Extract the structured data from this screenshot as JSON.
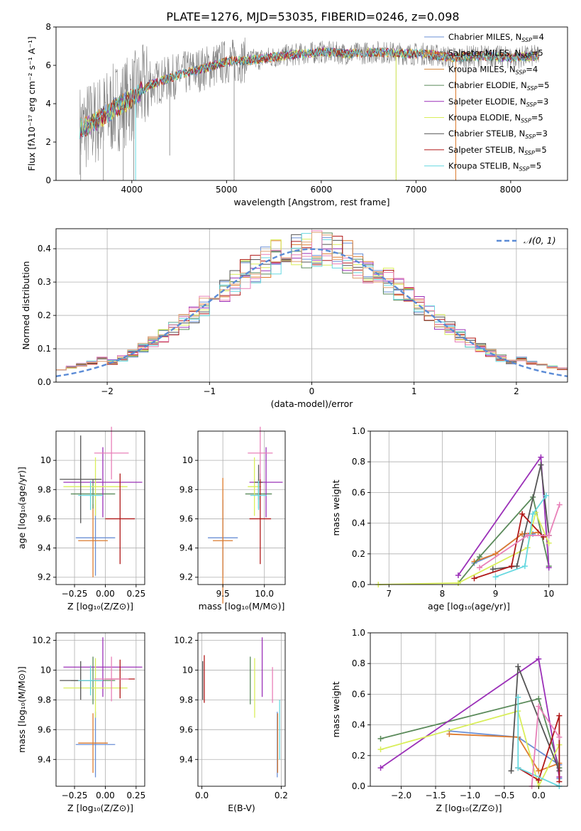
{
  "figure_title": "PLATE=1276, MJD=53035, FIBERID=0246, z=0.098",
  "model_colors": {
    "Chabrier MILES": "#6a8fd6",
    "Salpeter MILES": "#de7b2e",
    "Kroupa MILES": "#d98a3a",
    "Chabrier ELODIE": "#5a8a5a",
    "Salpeter ELODIE": "#9b30b8",
    "Kroupa ELODIE": "#d9ee5a",
    "Chabrier STELIB": "#555555",
    "Salpeter STELIB": "#b01818",
    "Kroupa STELIB": "#66d8e0",
    "pink": "#e880b8",
    "gray": "#888888"
  },
  "chart_data": [
    {
      "id": "spectrum",
      "type": "line",
      "xlabel": "wavelength [Angstrom, rest frame]",
      "ylabel": "Flux [fλ10⁻¹⁷ erg cm⁻² s⁻¹ A⁻¹]",
      "xlim": [
        3200,
        8600
      ],
      "ylim": [
        0,
        8
      ],
      "xticks": [
        4000,
        5000,
        6000,
        7000,
        8000
      ],
      "yticks": [
        0,
        2,
        4,
        6,
        8
      ],
      "legend_position": "upper-right",
      "legend": [
        {
          "label": "Chabrier MILES, N",
          "sub": "SSP",
          "suffix": "=4",
          "color": "#6a8fd6"
        },
        {
          "label": "Salpeter MILES, N",
          "sub": "SSP",
          "suffix": "=5",
          "color": "#de7b2e"
        },
        {
          "label": "Kroupa MILES, N",
          "sub": "SSP",
          "suffix": "=4",
          "color": "#d98a3a"
        },
        {
          "label": "Chabrier ELODIE, N",
          "sub": "SSP",
          "suffix": "=5",
          "color": "#5a8a5a"
        },
        {
          "label": "Salpeter ELODIE, N",
          "sub": "SSP",
          "suffix": "=3",
          "color": "#9b30b8"
        },
        {
          "label": "Kroupa ELODIE, N",
          "sub": "SSP",
          "suffix": "=5",
          "color": "#d9ee5a"
        },
        {
          "label": "Chabrier STELIB, N",
          "sub": "SSP",
          "suffix": "=3",
          "color": "#555555"
        },
        {
          "label": "Salpeter STELIB, N",
          "sub": "SSP",
          "suffix": "=5",
          "color": "#b01818"
        },
        {
          "label": "Kroupa STELIB, N",
          "sub": "SSP",
          "suffix": "=5",
          "color": "#66d8e0"
        }
      ],
      "continuum": [
        [
          3450,
          2.7
        ],
        [
          3600,
          3.0
        ],
        [
          3800,
          3.7
        ],
        [
          4000,
          4.3
        ],
        [
          4200,
          5.0
        ],
        [
          4500,
          5.5
        ],
        [
          4800,
          5.9
        ],
        [
          5000,
          6.2
        ],
        [
          5300,
          6.3
        ],
        [
          5600,
          6.5
        ],
        [
          6000,
          6.7
        ],
        [
          6300,
          6.6
        ],
        [
          6600,
          6.7
        ],
        [
          6900,
          6.6
        ],
        [
          7100,
          6.6
        ],
        [
          7400,
          6.4
        ],
        [
          7700,
          6.5
        ],
        [
          8000,
          6.4
        ],
        [
          8300,
          6.5
        ]
      ],
      "dropouts": [
        [
          3460,
          0
        ],
        [
          3700,
          0
        ],
        [
          3910,
          0
        ],
        [
          4020,
          0
        ],
        [
          4400,
          1.3
        ],
        [
          5080,
          0
        ],
        [
          6790,
          0
        ],
        [
          7420,
          0
        ]
      ]
    },
    {
      "id": "residuals",
      "type": "histogram",
      "xlabel": "(data-model)/error",
      "ylabel": "Normed distribution",
      "xlim": [
        -2.5,
        2.5
      ],
      "ylim": [
        0,
        0.46
      ],
      "xticks": [
        -2,
        -1,
        0,
        1,
        2
      ],
      "xtick_labels": [
        "−2",
        "−1",
        "0",
        "1",
        "2"
      ],
      "yticks": [
        0,
        0.1,
        0.2,
        0.3,
        0.4
      ],
      "ytick_labels": [
        "0.0",
        "0.1",
        "0.2",
        "0.3",
        "0.4"
      ],
      "bin_width": 0.1,
      "legend_label": "𝒩(0, 1)",
      "legend_position": "upper-right",
      "normal_curve_color": "#5b8bd6"
    },
    {
      "id": "age_vs_Z",
      "type": "errorbar",
      "xlabel": "Z [log₁₀(Z/Z⊙)]",
      "ylabel": "age  [log₁₀(age/yr)]",
      "xlim": [
        -0.4,
        0.32
      ],
      "ylim": [
        9.15,
        10.2
      ],
      "xticks": [
        -0.25,
        0,
        0.25
      ],
      "xtick_labels": [
        "−0.25",
        "0.00",
        "0.25"
      ],
      "yticks": [
        9.2,
        9.4,
        9.6,
        9.8,
        10.0
      ],
      "points": [
        {
          "x": -0.08,
          "xerr": 0.16,
          "y": 9.47,
          "yerr": 0.26,
          "color": "#6a8fd6"
        },
        {
          "x": -0.1,
          "xerr": 0.12,
          "y": 9.45,
          "yerr": 0.25,
          "color": "#de7b2e"
        },
        {
          "x": -0.1,
          "xerr": 0.18,
          "y": 9.77,
          "yerr": 0.1,
          "color": "#5a8a5a"
        },
        {
          "x": -0.02,
          "xerr": 0.32,
          "y": 9.85,
          "yerr": 0.24,
          "color": "#9b30b8"
        },
        {
          "x": -0.08,
          "xerr": 0.26,
          "y": 9.82,
          "yerr": 0.2,
          "color": "#d9ee5a"
        },
        {
          "x": -0.2,
          "xerr": 0.17,
          "y": 9.87,
          "yerr": 0.3,
          "color": "#555555"
        },
        {
          "x": 0.12,
          "xerr": 0.12,
          "y": 9.6,
          "yerr": 0.31,
          "color": "#b01818"
        },
        {
          "x": -0.12,
          "xerr": 0.1,
          "y": 9.76,
          "yerr": 0.1,
          "color": "#66d8e0"
        },
        {
          "x": 0.05,
          "xerr": 0.14,
          "y": 10.05,
          "yerr": 0.18,
          "color": "#e880b8"
        }
      ]
    },
    {
      "id": "age_vs_mass",
      "type": "errorbar",
      "xlabel": "mass [log₁₀(M/M⊙)]",
      "ylabel": "",
      "xlim": [
        9.2,
        10.25
      ],
      "ylim": [
        9.15,
        10.2
      ],
      "xticks": [
        9.5,
        10.0
      ],
      "xtick_labels": [
        "9.5",
        "10.0"
      ],
      "yticks": [
        9.2,
        9.4,
        9.6,
        9.8,
        10.0
      ],
      "points": [
        {
          "x": 9.5,
          "xerr": 0.18,
          "y": 9.47,
          "yerr": 0.26,
          "color": "#6a8fd6"
        },
        {
          "x": 9.5,
          "xerr": 0.12,
          "y": 9.45,
          "yerr": 0.43,
          "color": "#de7b2e"
        },
        {
          "x": 9.93,
          "xerr": 0.16,
          "y": 9.77,
          "yerr": 0.1,
          "color": "#5a8a5a"
        },
        {
          "x": 10.02,
          "xerr": 0.2,
          "y": 9.85,
          "yerr": 0.24,
          "color": "#9b30b8"
        },
        {
          "x": 9.88,
          "xerr": 0.08,
          "y": 9.82,
          "yerr": 0.2,
          "color": "#d9ee5a"
        },
        {
          "x": 9.93,
          "xerr": 0.05,
          "y": 9.85,
          "yerr": 0.12,
          "color": "#555555"
        },
        {
          "x": 9.95,
          "xerr": 0.13,
          "y": 9.6,
          "yerr": 0.31,
          "color": "#b01818"
        },
        {
          "x": 9.93,
          "xerr": 0.1,
          "y": 9.76,
          "yerr": 0.1,
          "color": "#66d8e0"
        },
        {
          "x": 9.95,
          "xerr": 0.15,
          "y": 10.05,
          "yerr": 0.18,
          "color": "#e880b8"
        }
      ]
    },
    {
      "id": "weight_vs_age",
      "type": "line",
      "xlabel": "age  [log₁₀(age/yr)]",
      "ylabel": "mass weight",
      "xlim": [
        6.65,
        10.35
      ],
      "ylim": [
        0,
        1
      ],
      "xticks": [
        7,
        8,
        9,
        10
      ],
      "xtick_labels": [
        "7",
        "8",
        "9",
        "10"
      ],
      "yticks": [
        0,
        0.2,
        0.4,
        0.6,
        0.8,
        1.0
      ],
      "ytick_labels": [
        "0.0",
        "0.2",
        "0.4",
        "0.6",
        "0.8",
        "1.0"
      ],
      "series": [
        {
          "color": "#6a8fd6",
          "points": [
            [
              8.6,
              0.14
            ],
            [
              9.0,
              0.2
            ],
            [
              9.5,
              0.33
            ],
            [
              9.7,
              0.33
            ]
          ]
        },
        {
          "color": "#de7b2e",
          "points": [
            [
              8.6,
              0.15
            ],
            [
              9.0,
              0.2
            ],
            [
              9.5,
              0.33
            ],
            [
              9.8,
              0.34
            ]
          ]
        },
        {
          "color": "#5a8a5a",
          "points": [
            [
              8.3,
              0.01
            ],
            [
              8.7,
              0.18
            ],
            [
              9.7,
              0.57
            ],
            [
              10.0,
              0.12
            ]
          ]
        },
        {
          "color": "#9b30b8",
          "points": [
            [
              8.3,
              0.06
            ],
            [
              9.85,
              0.83
            ],
            [
              10.0,
              0.11
            ]
          ]
        },
        {
          "color": "#d9ee5a",
          "points": [
            [
              6.8,
              0.0
            ],
            [
              8.3,
              0.01
            ],
            [
              9.6,
              0.24
            ],
            [
              9.75,
              0.47
            ],
            [
              10.0,
              0.27
            ]
          ]
        },
        {
          "color": "#555555",
          "points": [
            [
              8.95,
              0.1
            ],
            [
              9.4,
              0.12
            ],
            [
              9.85,
              0.78
            ],
            [
              10.0,
              0.32
            ]
          ]
        },
        {
          "color": "#b01818",
          "points": [
            [
              8.6,
              0.04
            ],
            [
              9.3,
              0.12
            ],
            [
              9.5,
              0.46
            ],
            [
              9.9,
              0.31
            ]
          ]
        },
        {
          "color": "#66d8e0",
          "points": [
            [
              9.0,
              0.05
            ],
            [
              9.55,
              0.12
            ],
            [
              9.7,
              0.46
            ],
            [
              9.95,
              0.58
            ]
          ]
        },
        {
          "color": "#e880b8",
          "points": [
            [
              8.7,
              0.11
            ],
            [
              9.6,
              0.32
            ],
            [
              10.0,
              0.32
            ],
            [
              10.2,
              0.52
            ]
          ]
        }
      ]
    },
    {
      "id": "mass_vs_Z",
      "type": "errorbar",
      "xlabel": "Z [log₁₀(Z/Z⊙)]",
      "ylabel": "mass [log₁₀(M/M⊙)]",
      "xlim": [
        -0.4,
        0.32
      ],
      "ylim": [
        9.22,
        10.25
      ],
      "xticks": [
        -0.25,
        0,
        0.25
      ],
      "xtick_labels": [
        "−0.25",
        "0.00",
        "0.25"
      ],
      "yticks": [
        9.4,
        9.6,
        9.8,
        10.0,
        10.2
      ],
      "points": [
        {
          "x": -0.08,
          "xerr": 0.16,
          "y": 9.5,
          "yerr": 0.22,
          "color": "#6a8fd6"
        },
        {
          "x": -0.1,
          "xerr": 0.12,
          "y": 9.51,
          "yerr": 0.2,
          "color": "#de7b2e"
        },
        {
          "x": -0.1,
          "xerr": 0.18,
          "y": 9.93,
          "yerr": 0.16,
          "color": "#5a8a5a"
        },
        {
          "x": -0.02,
          "xerr": 0.32,
          "y": 10.02,
          "yerr": 0.2,
          "color": "#9b30b8"
        },
        {
          "x": -0.08,
          "xerr": 0.26,
          "y": 9.88,
          "yerr": 0.2,
          "color": "#d9ee5a"
        },
        {
          "x": -0.2,
          "xerr": 0.17,
          "y": 9.93,
          "yerr": 0.13,
          "color": "#555555"
        },
        {
          "x": 0.12,
          "xerr": 0.12,
          "y": 9.94,
          "yerr": 0.13,
          "color": "#b01818"
        },
        {
          "x": -0.12,
          "xerr": 0.1,
          "y": 9.93,
          "yerr": 0.1,
          "color": "#66d8e0"
        },
        {
          "x": 0.05,
          "xerr": 0.14,
          "y": 9.94,
          "yerr": 0.15,
          "color": "#e880b8"
        }
      ]
    },
    {
      "id": "mass_vs_ebv",
      "type": "errorbar",
      "xlabel": "E(B-V)",
      "ylabel": "",
      "xlim": [
        -0.01,
        0.21
      ],
      "ylim": [
        9.22,
        10.25
      ],
      "xticks": [
        0.0,
        0.2
      ],
      "xtick_labels": [
        "0.0",
        "0.2"
      ],
      "yticks": [
        9.4,
        9.6,
        9.8,
        10.0,
        10.2
      ],
      "points": [
        {
          "x": 0.19,
          "y": 9.5,
          "yerr": 0.22,
          "color": "#6a8fd6"
        },
        {
          "x": 0.191,
          "y": 9.51,
          "yerr": 0.2,
          "color": "#de7b2e"
        },
        {
          "x": 0.122,
          "y": 9.93,
          "yerr": 0.16,
          "color": "#5a8a5a"
        },
        {
          "x": 0.152,
          "y": 10.02,
          "yerr": 0.2,
          "color": "#9b30b8"
        },
        {
          "x": 0.133,
          "y": 9.88,
          "yerr": 0.2,
          "color": "#d9ee5a"
        },
        {
          "x": 0.002,
          "y": 9.93,
          "yerr": 0.13,
          "color": "#555555"
        },
        {
          "x": 0.006,
          "y": 9.94,
          "yerr": 0.16,
          "color": "#b01818"
        },
        {
          "x": 0.196,
          "y": 9.6,
          "yerr": 0.2,
          "color": "#66d8e0"
        },
        {
          "x": 0.178,
          "y": 9.9,
          "yerr": 0.12,
          "color": "#e880b8"
        }
      ]
    },
    {
      "id": "weight_vs_Z",
      "type": "line",
      "xlabel": "Z [log₁₀(Z/Z⊙)]",
      "ylabel": "mass weight",
      "xlim": [
        -2.45,
        0.42
      ],
      "ylim": [
        0,
        1
      ],
      "xticks": [
        -2.0,
        -1.5,
        -1.0,
        -0.5,
        0.0
      ],
      "xtick_labels": [
        "−2.0",
        "−1.5",
        "−1.0",
        "−0.5",
        "0.0"
      ],
      "yticks": [
        0,
        0.2,
        0.4,
        0.6,
        0.8,
        1.0
      ],
      "ytick_labels": [
        "0.0",
        "0.2",
        "0.4",
        "0.6",
        "0.8",
        "1.0"
      ],
      "series": [
        {
          "color": "#6a8fd6",
          "points": [
            [
              -1.3,
              0.36
            ],
            [
              -0.3,
              0.32
            ],
            [
              0.3,
              0.14
            ],
            [
              0.3,
              0.05
            ]
          ]
        },
        {
          "color": "#de7b2e",
          "points": [
            [
              -1.3,
              0.34
            ],
            [
              -0.3,
              0.32
            ],
            [
              0.0,
              0.1
            ],
            [
              0.3,
              0.15
            ]
          ]
        },
        {
          "color": "#5a8a5a",
          "points": [
            [
              -2.3,
              0.31
            ],
            [
              0.0,
              0.57
            ],
            [
              0.3,
              0.12
            ]
          ]
        },
        {
          "color": "#9b30b8",
          "points": [
            [
              -2.3,
              0.12
            ],
            [
              0.0,
              0.83
            ],
            [
              0.3,
              0.06
            ]
          ]
        },
        {
          "color": "#d9ee5a",
          "points": [
            [
              -2.3,
              0.24
            ],
            [
              -0.3,
              0.49
            ],
            [
              0.0,
              0.0
            ],
            [
              0.3,
              0.27
            ]
          ]
        },
        {
          "color": "#555555",
          "points": [
            [
              -0.4,
              0.1
            ],
            [
              -0.3,
              0.78
            ],
            [
              0.3,
              0.1
            ]
          ]
        },
        {
          "color": "#b01818",
          "points": [
            [
              -0.3,
              0.12
            ],
            [
              0.0,
              0.04
            ],
            [
              0.3,
              0.46
            ],
            [
              0.3,
              0.03
            ]
          ]
        },
        {
          "color": "#66d8e0",
          "points": [
            [
              -0.3,
              0.58
            ],
            [
              -0.3,
              0.12
            ],
            [
              0.3,
              0.0
            ]
          ]
        },
        {
          "color": "#e880b8",
          "points": [
            [
              -0.1,
              0.0
            ],
            [
              0.0,
              0.52
            ],
            [
              0.3,
              0.32
            ]
          ]
        }
      ]
    }
  ]
}
